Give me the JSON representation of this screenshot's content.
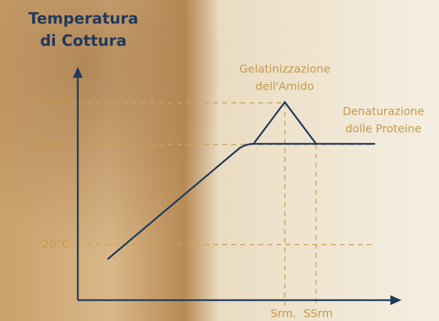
{
  "title": [
    "Temperatura",
    "di Cottura"
  ],
  "y_labels": [
    "220°C",
    "150°C",
    "20°C"
  ],
  "x_labels": [
    "Srm.",
    "SSrm"
  ],
  "annotations": [
    {
      "lines": [
        "Gelatinizzazione",
        "dell'Amido"
      ]
    },
    {
      "lines": [
        "Denaturazione",
        "dolle Proteine"
      ]
    }
  ]
}
